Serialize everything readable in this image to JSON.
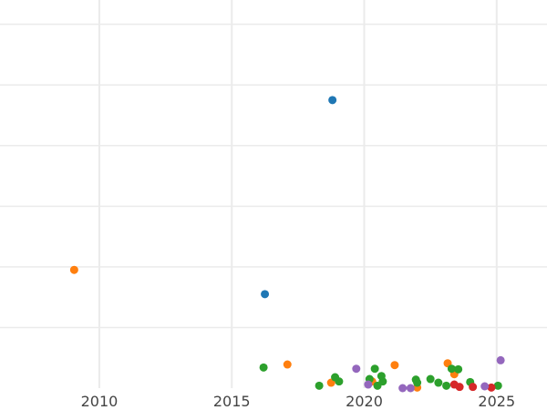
{
  "chart_data": {
    "type": "scatter",
    "title": "",
    "xlabel": "",
    "ylabel": "",
    "xlim": [
      2006.25,
      2026.9
    ],
    "ylim": [
      0,
      64
    ],
    "grid": true,
    "legend": "none",
    "x_ticks": [
      2010,
      2015,
      2020,
      2025
    ],
    "x_tick_labels": [
      "2010",
      "2015",
      "2020",
      "2025"
    ],
    "y_grid_values": [
      10,
      20,
      30,
      40,
      50,
      60
    ],
    "series": [
      {
        "color": "#1f77b4",
        "points": [
          {
            "x": 2018.8,
            "y": 47.5
          },
          {
            "x": 2016.25,
            "y": 15.5
          }
        ]
      },
      {
        "color": "#ff7f0e",
        "points": [
          {
            "x": 2009.05,
            "y": 19.5
          },
          {
            "x": 2017.1,
            "y": 3.9
          },
          {
            "x": 2018.75,
            "y": 0.9
          },
          {
            "x": 2020.3,
            "y": 1.1
          },
          {
            "x": 2021.15,
            "y": 3.8
          },
          {
            "x": 2022.0,
            "y": 0.1
          },
          {
            "x": 2023.15,
            "y": 4.1
          },
          {
            "x": 2023.4,
            "y": 2.3
          }
        ]
      },
      {
        "color": "#2ca02c",
        "points": [
          {
            "x": 2016.2,
            "y": 3.4
          },
          {
            "x": 2018.3,
            "y": 0.4
          },
          {
            "x": 2018.9,
            "y": 1.8
          },
          {
            "x": 2019.05,
            "y": 1.1
          },
          {
            "x": 2020.2,
            "y": 1.5
          },
          {
            "x": 2020.4,
            "y": 3.2
          },
          {
            "x": 2020.5,
            "y": 0.4
          },
          {
            "x": 2020.65,
            "y": 2.0
          },
          {
            "x": 2020.7,
            "y": 1.1
          },
          {
            "x": 2021.95,
            "y": 1.4
          },
          {
            "x": 2022.0,
            "y": 0.9
          },
          {
            "x": 2022.5,
            "y": 1.5
          },
          {
            "x": 2022.8,
            "y": 0.9
          },
          {
            "x": 2023.1,
            "y": 0.4
          },
          {
            "x": 2023.3,
            "y": 3.2
          },
          {
            "x": 2023.55,
            "y": 3.1
          },
          {
            "x": 2024.0,
            "y": 1.0
          },
          {
            "x": 2025.05,
            "y": 0.4
          }
        ]
      },
      {
        "color": "#d62728",
        "points": [
          {
            "x": 2023.4,
            "y": 0.6
          },
          {
            "x": 2023.6,
            "y": 0.2
          },
          {
            "x": 2024.1,
            "y": 0.2
          },
          {
            "x": 2024.8,
            "y": 0.1
          }
        ]
      },
      {
        "color": "#9467bd",
        "points": [
          {
            "x": 2019.7,
            "y": 3.2
          },
          {
            "x": 2020.15,
            "y": 0.6
          },
          {
            "x": 2021.45,
            "y": 0.0
          },
          {
            "x": 2021.75,
            "y": 0.0
          },
          {
            "x": 2024.55,
            "y": 0.3
          },
          {
            "x": 2025.15,
            "y": 4.6
          }
        ]
      }
    ]
  },
  "colors": {
    "grid": "#ebebeb",
    "tick_text": "#444444",
    "background": "#ffffff"
  }
}
